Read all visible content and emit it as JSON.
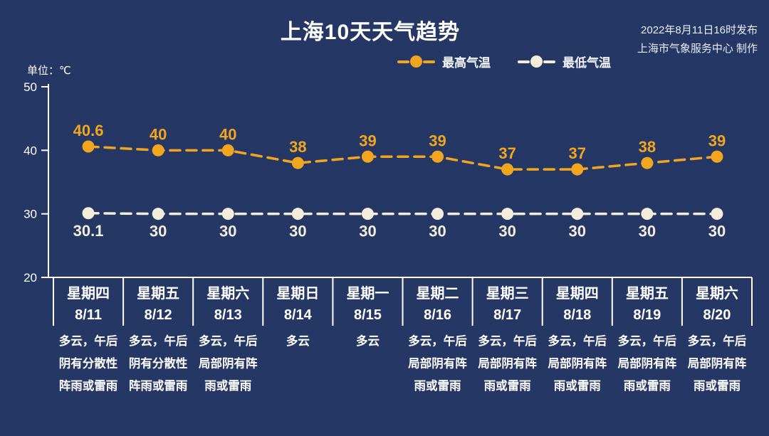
{
  "header": {
    "title": "上海10天天气趋势",
    "publish_line1": "2022年8月11日16时发布",
    "publish_line2": "上海市气象服务中心 制作",
    "unit_label": "单位：℃"
  },
  "legend": {
    "max_label": "最高气温",
    "min_label": "最低气温"
  },
  "colors": {
    "background": "#253765",
    "max_series": "#F2A51F",
    "min_series": "#F5EDDC",
    "axis": "#FFFFFF",
    "label_text": "#FFFFFF"
  },
  "chart_data": {
    "type": "line",
    "title": "上海10天天气趋势",
    "ylabel": "单位：℃",
    "ylim": [
      20,
      50
    ],
    "yticks": [
      50,
      40,
      30,
      20
    ],
    "grid": false,
    "legend_position": "top",
    "line_style": "dashed",
    "categories": [
      {
        "weekday": "星期四",
        "date": "8/11"
      },
      {
        "weekday": "星期五",
        "date": "8/12"
      },
      {
        "weekday": "星期六",
        "date": "8/13"
      },
      {
        "weekday": "星期日",
        "date": "8/14"
      },
      {
        "weekday": "星期一",
        "date": "8/15"
      },
      {
        "weekday": "星期二",
        "date": "8/16"
      },
      {
        "weekday": "星期三",
        "date": "8/17"
      },
      {
        "weekday": "星期四",
        "date": "8/18"
      },
      {
        "weekday": "星期五",
        "date": "8/19"
      },
      {
        "weekday": "星期六",
        "date": "8/20"
      }
    ],
    "series": [
      {
        "name": "最高气温",
        "color": "#F2A51F",
        "label_position": "above",
        "values": [
          40.6,
          40,
          40,
          38,
          39,
          39,
          37,
          37,
          38,
          39
        ],
        "labels": [
          "40.6",
          "40",
          "40",
          "38",
          "39",
          "39",
          "37",
          "37",
          "38",
          "39"
        ]
      },
      {
        "name": "最低气温",
        "color": "#F5EDDC",
        "label_position": "below",
        "values": [
          30.1,
          30,
          30,
          30,
          30,
          30,
          30,
          30,
          30,
          30
        ],
        "labels": [
          "30.1",
          "30",
          "30",
          "30",
          "30",
          "30",
          "30",
          "30",
          "30",
          "30"
        ]
      }
    ],
    "weather": [
      [
        "多云，午后",
        "阴有分散性",
        "阵雨或雷雨"
      ],
      [
        "多云，午后",
        "阴有分散性",
        "阵雨或雷雨"
      ],
      [
        "多云，午后",
        "局部阴有阵",
        "雨或雷雨"
      ],
      [
        "多云"
      ],
      [
        "多云"
      ],
      [
        "多云，午后",
        "局部阴有阵",
        "雨或雷雨"
      ],
      [
        "多云，午后",
        "局部阴有阵",
        "雨或雷雨"
      ],
      [
        "多云，午后",
        "局部阴有阵",
        "雨或雷雨"
      ],
      [
        "多云，午后",
        "局部阴有阵",
        "雨或雷雨"
      ],
      [
        "多云，午后",
        "局部阴有阵",
        "雨或雷雨"
      ]
    ]
  }
}
